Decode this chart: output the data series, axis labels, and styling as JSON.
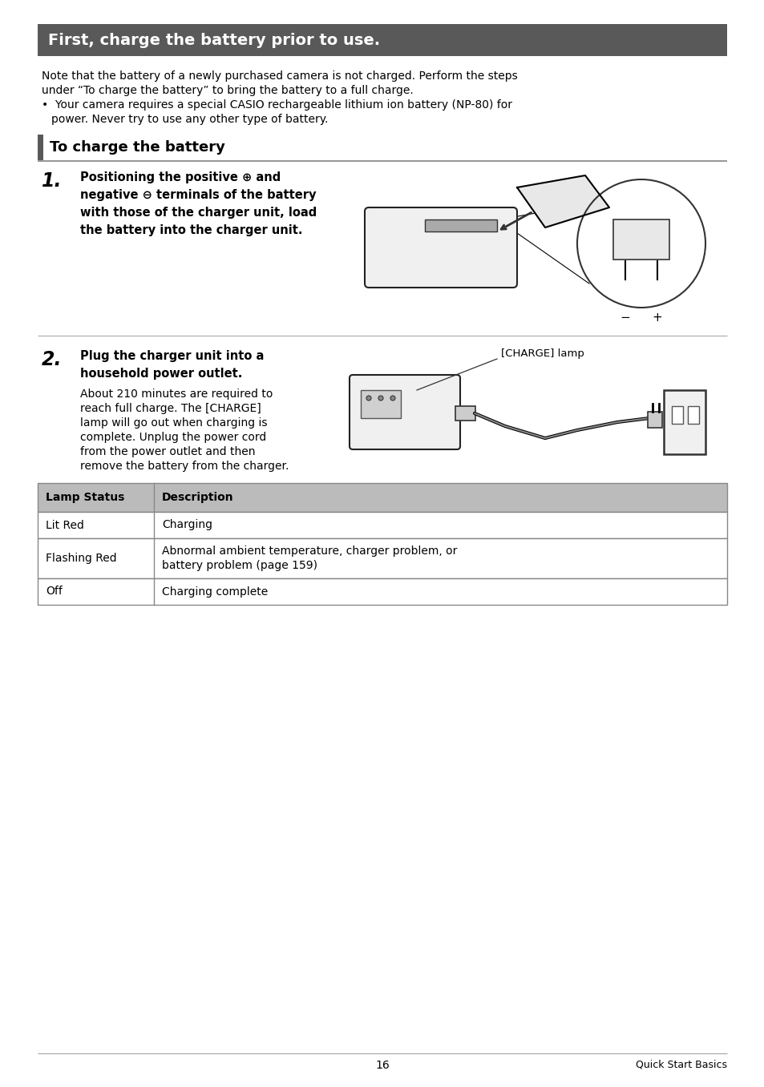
{
  "page_bg": "#ffffff",
  "header_bg": "#595959",
  "header_text": "First, charge the battery prior to use.",
  "header_text_color": "#ffffff",
  "header_fontsize": 14,
  "body_text_color": "#000000",
  "section_bar_color": "#595959",
  "section_title": "To charge the battery",
  "section_title_fontsize": 13,
  "para1_line1": "Note that the battery of a newly purchased camera is not charged. Perform the steps",
  "para1_line2": "under “To charge the battery” to bring the battery to a full charge.",
  "para1_bullet": "•  Your camera requires a special CASIO rechargeable lithium ion battery (NP-80) for",
  "para1_bullet2": "    power. Never try to use any other type of battery.",
  "step1_num": "1.",
  "step1_bold_lines": [
    "Positioning the positive ⊕ and",
    "negative ⊖ terminals of the battery",
    "with those of the charger unit, load",
    "the battery into the charger unit."
  ],
  "step2_num": "2.",
  "step2_bold_lines": [
    "Plug the charger unit into a",
    "household power outlet."
  ],
  "step2_body_lines": [
    "About 210 minutes are required to",
    "reach full charge. The [CHARGE]",
    "lamp will go out when charging is",
    "complete. Unplug the power cord",
    "from the power outlet and then",
    "remove the battery from the charger."
  ],
  "charge_lamp_label": "[CHARGE] lamp",
  "table_header_bg": "#bbbbbb",
  "table_col1_header": "Lamp Status",
  "table_col2_header": "Description",
  "table_rows": [
    [
      "Lit Red",
      "Charging"
    ],
    [
      "Flashing Red",
      "Abnormal ambient temperature, charger problem, or\nbattery problem (page 159)"
    ],
    [
      "Off",
      "Charging complete"
    ]
  ],
  "footer_page": "16",
  "footer_right": "Quick Start Basics",
  "body_fontsize": 10.0,
  "table_fontsize": 10.0,
  "step_bold_fontsize": 10.5,
  "step_num_fontsize": 17
}
